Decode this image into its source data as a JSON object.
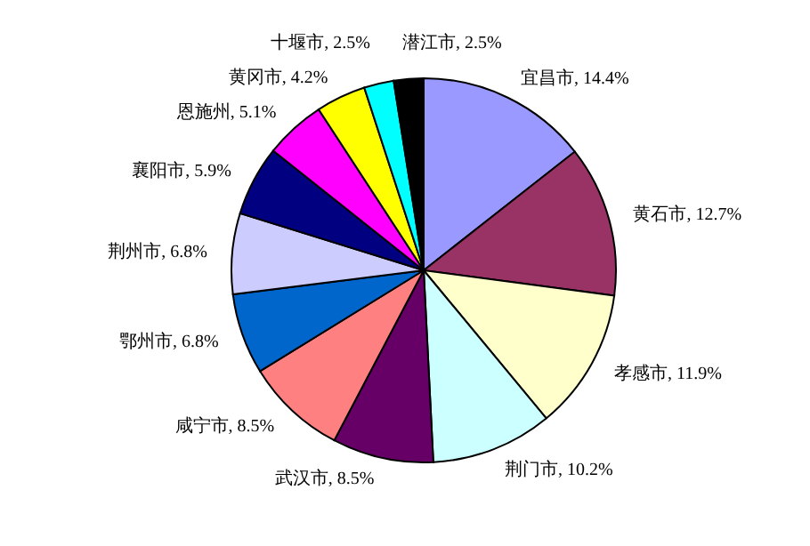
{
  "chart_data": {
    "type": "pie",
    "categories": [
      "宜昌市",
      "黄石市",
      "孝感市",
      "荆门市",
      "武汉市",
      "咸宁市",
      "鄂州市",
      "荆州市",
      "襄阳市",
      "恩施州",
      "黄冈市",
      "十堰市",
      "潜江市"
    ],
    "values": [
      14.4,
      12.7,
      11.9,
      10.2,
      8.5,
      8.5,
      6.8,
      6.8,
      5.9,
      5.1,
      4.2,
      2.5,
      2.5
    ],
    "colors": [
      "#9999ff",
      "#993366",
      "#ffffcc",
      "#ccffff",
      "#660066",
      "#ff8080",
      "#0066cc",
      "#ccccff",
      "#000080",
      "#ff00ff",
      "#ffff00",
      "#00ffff",
      "#000000"
    ],
    "value_labels": [
      "14.4%",
      "12.7%",
      "11.9%",
      "10.2%",
      "8.5%",
      "8.5%",
      "6.8%",
      "6.8%",
      "5.9%",
      "5.1%",
      "4.2%",
      "2.5%",
      "2.5%"
    ]
  }
}
